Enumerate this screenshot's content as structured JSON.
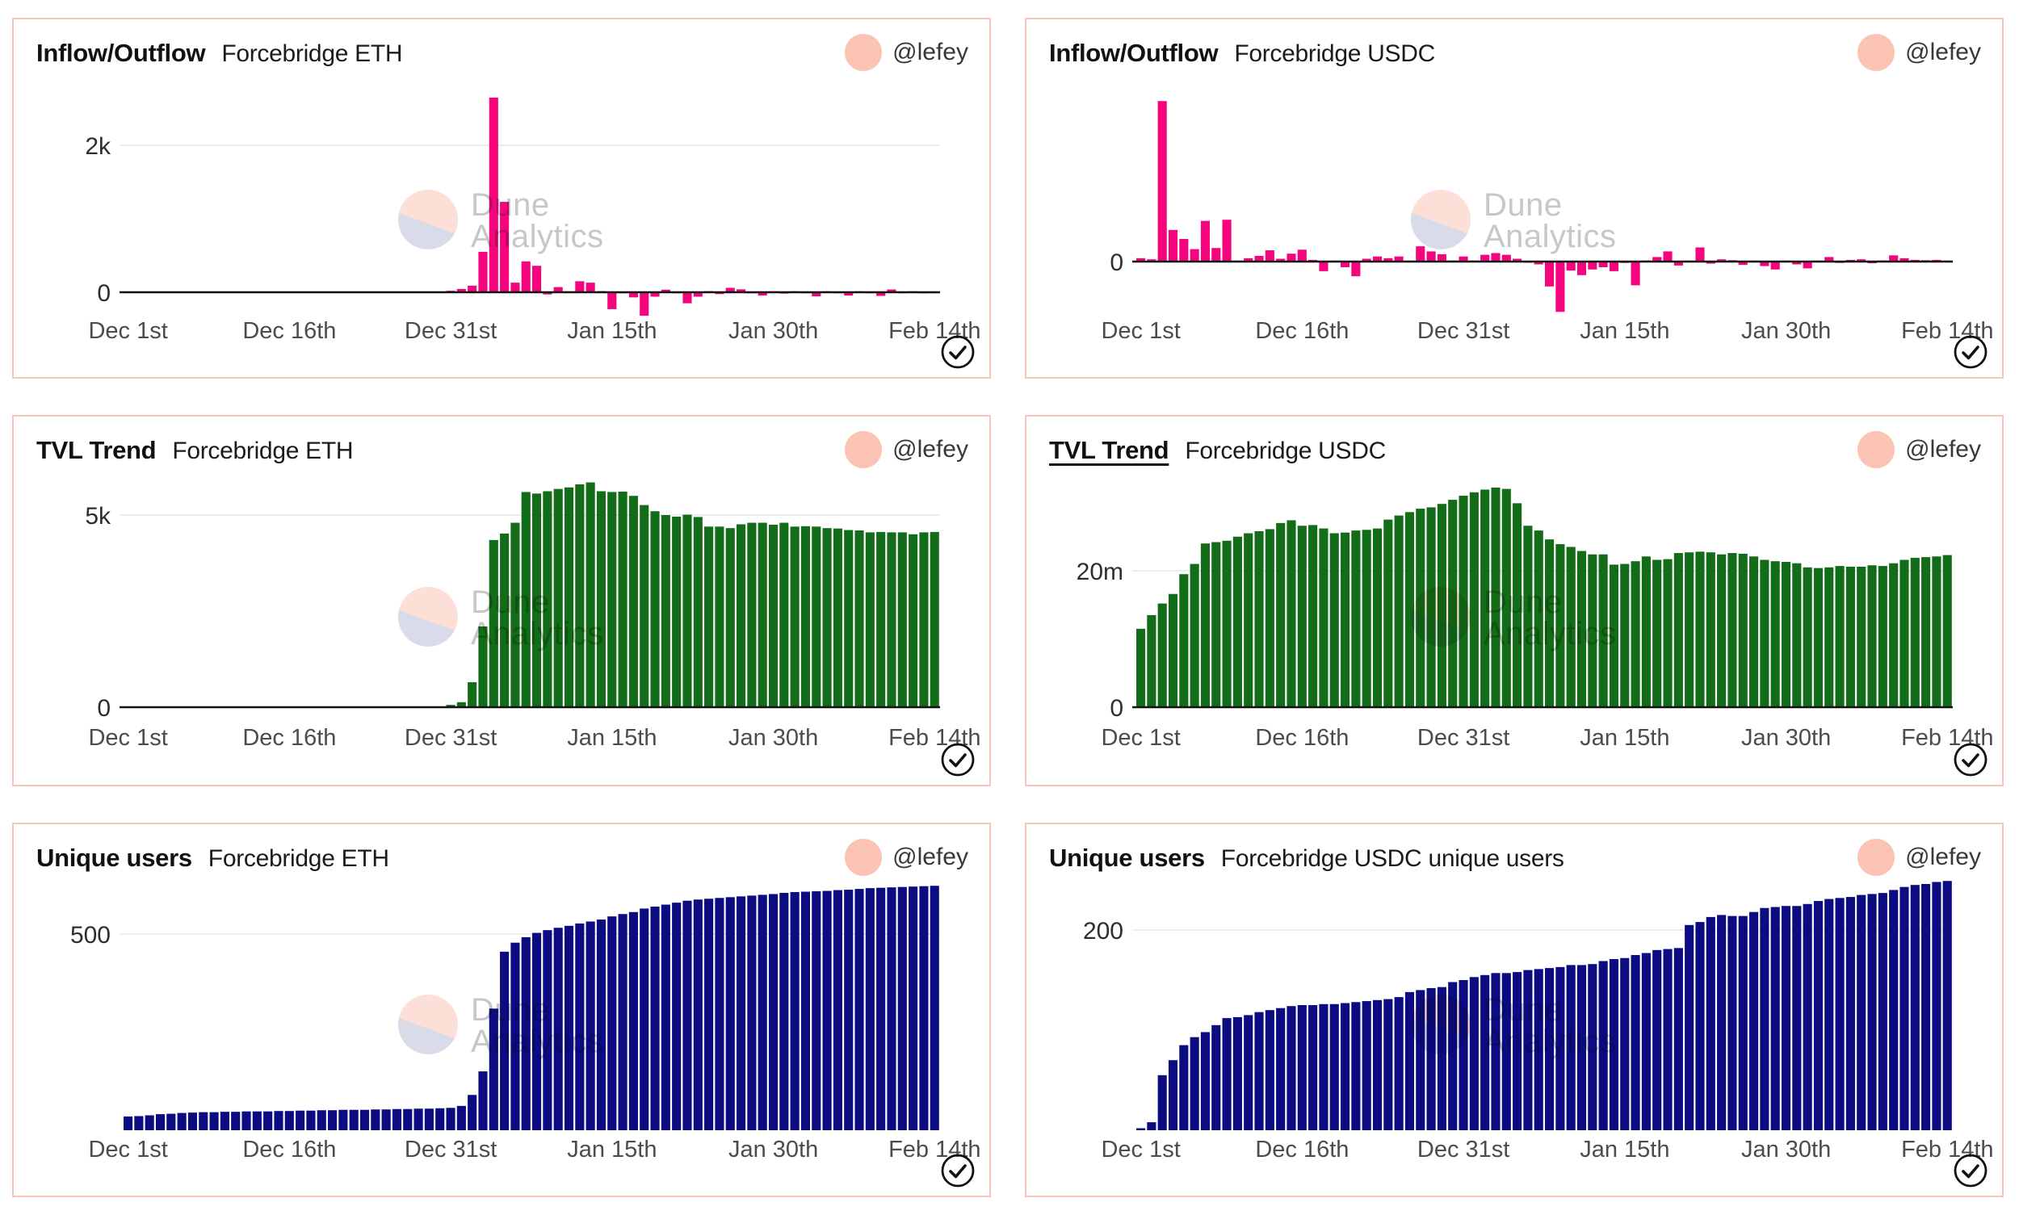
{
  "page": {
    "author_handle": "@lefey",
    "watermark": {
      "line1": "Dune",
      "line2": "Analytics"
    },
    "colors": {
      "panel_border": "#f8c5b6",
      "avatar": "#fbc3b4",
      "inflow_bar": "#f5047e",
      "tvl_bar": "#136c17",
      "users_bar": "#0b0b82",
      "gridline": "#ececec",
      "axis": "#111111",
      "tick_label": "#4c4c4c",
      "watermark_text": "#c7c7c7"
    }
  },
  "panels": [
    {
      "id": "inflow-outflow-eth",
      "title": "Inflow/Outflow",
      "title_underline": false,
      "subtitle": "Forcebridge ETH",
      "author": "@lefey",
      "chart_data": {
        "type": "bar",
        "title": "Inflow/Outflow Forcebridge ETH",
        "xlabel": "",
        "ylabel": "",
        "bar_color": "#f5047e",
        "grid": true,
        "ylim": [
          -400,
          3000
        ],
        "x_tick_labels": [
          "Dec 1st",
          "Dec 16th",
          "Dec 31st",
          "Jan 15th",
          "Jan 30th",
          "Feb 14th"
        ],
        "x_tick_indices": [
          0,
          15,
          30,
          45,
          60,
          75
        ],
        "gridlines": [
          {
            "value": 2000,
            "label": "2k"
          },
          {
            "value": 0,
            "label": "0"
          }
        ],
        "values": [
          0,
          0,
          0,
          0,
          0,
          0,
          0,
          0,
          0,
          0,
          0,
          0,
          0,
          0,
          0,
          0,
          0,
          0,
          0,
          0,
          0,
          0,
          0,
          0,
          0,
          0,
          0,
          0,
          0,
          0,
          20,
          45,
          90,
          550,
          2650,
          1230,
          130,
          420,
          360,
          -30,
          70,
          10,
          150,
          130,
          15,
          -230,
          -15,
          -70,
          -320,
          -60,
          35,
          -15,
          -150,
          -60,
          15,
          -25,
          60,
          40,
          -15,
          -45,
          12,
          -18,
          8,
          -12,
          -55,
          12,
          -12,
          -45,
          8,
          -12,
          -50,
          38,
          -12,
          8,
          -15,
          -12
        ]
      }
    },
    {
      "id": "inflow-outflow-usdc",
      "title": "Inflow/Outflow",
      "title_underline": false,
      "subtitle": "Forcebridge USDC",
      "author": "@lefey",
      "chart_data": {
        "type": "bar",
        "title": "Inflow/Outflow Forcebridge USDC",
        "xlabel": "",
        "ylabel": "",
        "bar_color": "#f5047e",
        "grid": true,
        "ylim": [
          -6,
          17
        ],
        "unit": "millions",
        "x_tick_labels": [
          "Dec 1st",
          "Dec 16th",
          "Dec 31st",
          "Jan 15th",
          "Jan 30th",
          "Feb 14th"
        ],
        "x_tick_indices": [
          0,
          15,
          30,
          45,
          60,
          75
        ],
        "gridlines": [
          {
            "value": 0,
            "label": "0"
          }
        ],
        "values": [
          0.3,
          0.2,
          14.2,
          2.8,
          2.0,
          1.1,
          3.6,
          1.2,
          3.7,
          0.05,
          0.3,
          0.5,
          1.0,
          0.25,
          0.7,
          1.05,
          0.15,
          -0.85,
          0.05,
          -0.5,
          -1.3,
          0.25,
          0.45,
          0.3,
          0.45,
          0.05,
          1.35,
          0.9,
          0.65,
          0.1,
          0.45,
          0.1,
          0.6,
          0.75,
          0.6,
          0.25,
          -0.1,
          -0.25,
          -2.2,
          -4.45,
          -0.8,
          -1.2,
          -0.7,
          -0.5,
          -0.85,
          -0.12,
          -2.1,
          0.1,
          0.4,
          0.9,
          -0.35,
          0.08,
          1.25,
          -0.18,
          0.2,
          0.12,
          -0.3,
          0.05,
          -0.4,
          -0.7,
          0.05,
          -0.25,
          -0.6,
          0.05,
          0.4,
          -0.12,
          0.15,
          0.2,
          -0.15,
          0.1,
          0.55,
          0.3,
          0.15,
          0.12,
          0.15,
          0.06
        ]
      }
    },
    {
      "id": "tvl-trend-eth",
      "title": "TVL Trend",
      "title_underline": false,
      "subtitle": "Forcebridge ETH",
      "author": "@lefey",
      "chart_data": {
        "type": "bar",
        "title": "TVL Trend Forcebridge ETH",
        "xlabel": "",
        "ylabel": "",
        "bar_color": "#136c17",
        "grid": true,
        "ylim": [
          0,
          6300
        ],
        "x_tick_labels": [
          "Dec 1st",
          "Dec 16th",
          "Dec 31st",
          "Jan 15th",
          "Jan 30th",
          "Feb 14th"
        ],
        "x_tick_indices": [
          0,
          15,
          30,
          45,
          60,
          75
        ],
        "gridlines": [
          {
            "value": 5000,
            "label": "5k"
          },
          {
            "value": 0,
            "label": "0"
          }
        ],
        "values": [
          0,
          0,
          0,
          0,
          0,
          0,
          0,
          0,
          0,
          0,
          0,
          0,
          0,
          0,
          0,
          0,
          0,
          0,
          0,
          0,
          0,
          0,
          0,
          0,
          0,
          0,
          0,
          0,
          0,
          0,
          60,
          130,
          650,
          2100,
          4350,
          4520,
          4800,
          5600,
          5560,
          5620,
          5680,
          5720,
          5800,
          5850,
          5620,
          5600,
          5610,
          5500,
          5260,
          5100,
          5000,
          4960,
          5010,
          4950,
          4700,
          4700,
          4660,
          4760,
          4800,
          4800,
          4750,
          4800,
          4700,
          4710,
          4700,
          4660,
          4650,
          4610,
          4600,
          4550,
          4560,
          4550,
          4550,
          4500,
          4550,
          4560
        ]
      }
    },
    {
      "id": "tvl-trend-usdc",
      "title": "TVL Trend",
      "title_underline": true,
      "subtitle": "Forcebridge USDC",
      "author": "@lefey",
      "chart_data": {
        "type": "bar",
        "title": "TVL Trend Forcebridge USDC",
        "xlabel": "",
        "ylabel": "",
        "bar_color": "#136c17",
        "grid": true,
        "ylim": [
          0,
          35
        ],
        "unit": "millions",
        "x_tick_labels": [
          "Dec 1st",
          "Dec 16th",
          "Dec 31st",
          "Jan 15th",
          "Jan 30th",
          "Feb 14th"
        ],
        "x_tick_indices": [
          0,
          15,
          30,
          45,
          60,
          75
        ],
        "gridlines": [
          {
            "value": 20,
            "label": "20m"
          },
          {
            "value": 0,
            "label": "0"
          }
        ],
        "values": [
          11.5,
          13.5,
          15.2,
          16.6,
          19.5,
          21.0,
          24.0,
          24.2,
          24.4,
          25.0,
          25.5,
          25.8,
          26.1,
          27.0,
          27.4,
          26.6,
          26.7,
          26.2,
          25.5,
          25.6,
          25.9,
          26.0,
          26.2,
          27.5,
          28.1,
          28.6,
          29.1,
          29.3,
          29.8,
          30.4,
          31.0,
          31.5,
          31.9,
          32.2,
          32.0,
          29.9,
          26.6,
          25.9,
          24.6,
          23.9,
          23.5,
          22.9,
          22.4,
          22.4,
          20.9,
          21.0,
          21.4,
          22.1,
          21.6,
          21.7,
          22.6,
          22.7,
          22.8,
          22.7,
          22.4,
          22.6,
          22.5,
          22.1,
          21.6,
          21.4,
          21.3,
          21.1,
          20.5,
          20.4,
          20.5,
          20.7,
          20.6,
          20.6,
          20.8,
          20.7,
          21.1,
          21.6,
          21.9,
          22.0,
          22.1,
          22.3
        ]
      }
    },
    {
      "id": "unique-users-eth",
      "title": "Unique users",
      "title_underline": false,
      "subtitle": "Forcebridge ETH",
      "author": "@lefey",
      "chart_data": {
        "type": "bar",
        "title": "Unique users Forcebridge ETH",
        "xlabel": "",
        "ylabel": "",
        "bar_color": "#0b0b82",
        "grid": true,
        "ylim": [
          0,
          660
        ],
        "x_tick_labels": [
          "Dec 1st",
          "Dec 16th",
          "Dec 31st",
          "Jan 15th",
          "Jan 30th",
          "Feb 14th"
        ],
        "x_tick_indices": [
          0,
          15,
          30,
          45,
          60,
          75
        ],
        "gridlines": [
          {
            "value": 500,
            "label": "500"
          }
        ],
        "values": [
          35,
          36,
          38,
          41,
          42,
          44,
          45,
          46,
          46,
          47,
          47,
          48,
          48,
          48,
          49,
          49,
          50,
          50,
          51,
          51,
          52,
          52,
          52,
          53,
          53,
          54,
          54,
          55,
          55,
          56,
          57,
          62,
          90,
          150,
          310,
          455,
          478,
          492,
          503,
          510,
          516,
          521,
          527,
          532,
          537,
          545,
          551,
          556,
          565,
          570,
          575,
          580,
          585,
          588,
          590,
          592,
          594,
          596,
          598,
          600,
          602,
          605,
          607,
          608,
          609,
          610,
          612,
          613,
          615,
          617,
          618,
          619,
          620,
          621,
          622,
          623
        ]
      }
    },
    {
      "id": "unique-users-usdc",
      "title": "Unique users",
      "title_underline": false,
      "subtitle": "Forcebridge USDC unique users",
      "author": "@lefey",
      "chart_data": {
        "type": "bar",
        "title": "Unique users Forcebridge USDC unique users",
        "xlabel": "",
        "ylabel": "",
        "bar_color": "#0b0b82",
        "grid": true,
        "ylim": [
          0,
          265
        ],
        "x_tick_labels": [
          "Dec 1st",
          "Dec 16th",
          "Dec 31st",
          "Jan 15th",
          "Jan 30th",
          "Feb 14th"
        ],
        "x_tick_indices": [
          0,
          15,
          30,
          45,
          60,
          75
        ],
        "gridlines": [
          {
            "value": 200,
            "label": "200"
          }
        ],
        "values": [
          2,
          8,
          55,
          70,
          85,
          93,
          98,
          105,
          112,
          113,
          115,
          118,
          120,
          122,
          124,
          125,
          125,
          126,
          126,
          127,
          128,
          129,
          130,
          131,
          133,
          138,
          140,
          142,
          143,
          148,
          150,
          153,
          155,
          157,
          157,
          158,
          160,
          161,
          162,
          163,
          165,
          165,
          166,
          169,
          171,
          172,
          175,
          177,
          180,
          181,
          182,
          205,
          208,
          213,
          215,
          214,
          214,
          218,
          222,
          223,
          224,
          224,
          226,
          229,
          231,
          232,
          233,
          235,
          236,
          237,
          240,
          243,
          245,
          246,
          248,
          249
        ]
      }
    }
  ]
}
